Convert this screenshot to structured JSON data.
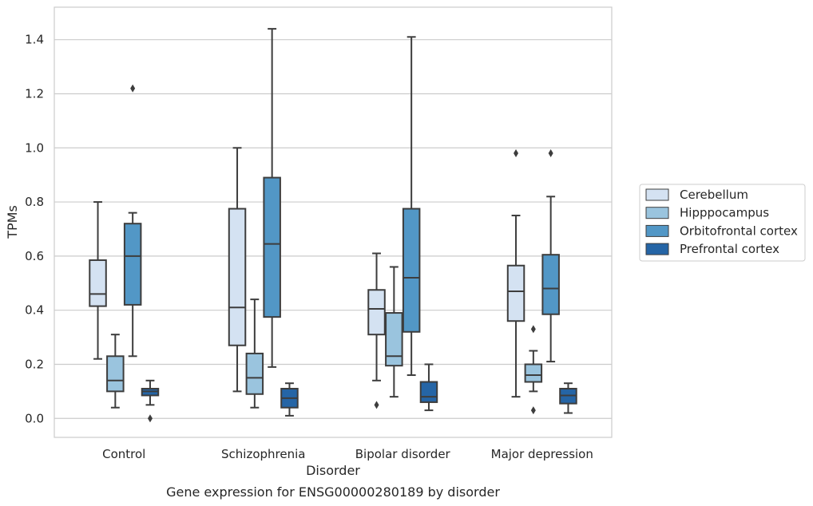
{
  "caption": "Gene expression for ENSG00000280189 by disorder",
  "chart_data": {
    "type": "box",
    "xlabel": "Disorder",
    "ylabel": "TPMs",
    "ylim": [
      -0.07,
      1.52
    ],
    "yticks": [
      "0.0",
      "0.2",
      "0.4",
      "0.6",
      "0.8",
      "1.0",
      "1.2",
      "1.4"
    ],
    "grid": "horizontal",
    "legend_position": "right",
    "categories": [
      "Control",
      "Schizophrenia",
      "Bipolar disorder",
      "Major depression"
    ],
    "series": [
      {
        "name": "Cerebellum",
        "color": "#d4e2f2",
        "boxes": [
          {
            "whisker_low": 0.22,
            "q1": 0.415,
            "median": 0.46,
            "q3": 0.585,
            "whisker_high": 0.8,
            "outliers": []
          },
          {
            "whisker_low": 0.1,
            "q1": 0.27,
            "median": 0.41,
            "q3": 0.775,
            "whisker_high": 1.0,
            "outliers": []
          },
          {
            "whisker_low": 0.14,
            "q1": 0.31,
            "median": 0.405,
            "q3": 0.475,
            "whisker_high": 0.61,
            "outliers": [
              0.05
            ]
          },
          {
            "whisker_low": 0.08,
            "q1": 0.36,
            "median": 0.47,
            "q3": 0.565,
            "whisker_high": 0.75,
            "outliers": [
              0.98
            ]
          }
        ]
      },
      {
        "name": "Hipppocampus",
        "color": "#9ac4de",
        "boxes": [
          {
            "whisker_low": 0.04,
            "q1": 0.1,
            "median": 0.14,
            "q3": 0.23,
            "whisker_high": 0.31,
            "outliers": []
          },
          {
            "whisker_low": 0.04,
            "q1": 0.09,
            "median": 0.15,
            "q3": 0.24,
            "whisker_high": 0.44,
            "outliers": []
          },
          {
            "whisker_low": 0.08,
            "q1": 0.195,
            "median": 0.23,
            "q3": 0.39,
            "whisker_high": 0.56,
            "outliers": []
          },
          {
            "whisker_low": 0.1,
            "q1": 0.135,
            "median": 0.16,
            "q3": 0.2,
            "whisker_high": 0.25,
            "outliers": [
              0.03,
              0.33
            ]
          }
        ]
      },
      {
        "name": "Orbitofrontal cortex",
        "color": "#5297c6",
        "boxes": [
          {
            "whisker_low": 0.23,
            "q1": 0.42,
            "median": 0.6,
            "q3": 0.72,
            "whisker_high": 0.76,
            "outliers": [
              1.22
            ]
          },
          {
            "whisker_low": 0.19,
            "q1": 0.375,
            "median": 0.645,
            "q3": 0.89,
            "whisker_high": 1.44,
            "outliers": []
          },
          {
            "whisker_low": 0.16,
            "q1": 0.32,
            "median": 0.52,
            "q3": 0.775,
            "whisker_high": 1.41,
            "outliers": []
          },
          {
            "whisker_low": 0.21,
            "q1": 0.385,
            "median": 0.48,
            "q3": 0.605,
            "whisker_high": 0.82,
            "outliers": [
              0.98
            ]
          }
        ]
      },
      {
        "name": "Prefrontal cortex",
        "color": "#2565a6",
        "boxes": [
          {
            "whisker_low": 0.05,
            "q1": 0.085,
            "median": 0.1,
            "q3": 0.11,
            "whisker_high": 0.14,
            "outliers": [
              0.0
            ]
          },
          {
            "whisker_low": 0.01,
            "q1": 0.04,
            "median": 0.075,
            "q3": 0.11,
            "whisker_high": 0.13,
            "outliers": []
          },
          {
            "whisker_low": 0.03,
            "q1": 0.06,
            "median": 0.08,
            "q3": 0.135,
            "whisker_high": 0.2,
            "outliers": []
          },
          {
            "whisker_low": 0.02,
            "q1": 0.055,
            "median": 0.085,
            "q3": 0.11,
            "whisker_high": 0.13,
            "outliers": []
          }
        ]
      }
    ]
  }
}
